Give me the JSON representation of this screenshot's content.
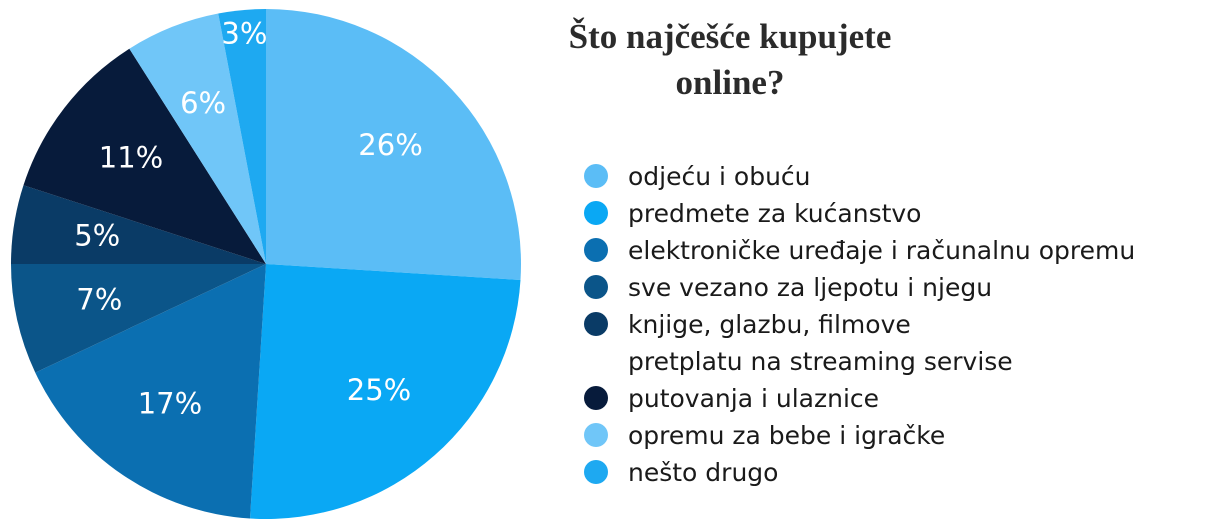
{
  "chart_data": {
    "type": "pie",
    "title": "Što najčešće kupujete online?",
    "categories": [
      "odjeću i obuću",
      "predmete za kućanstvo",
      "elektroničke uređaje i računalnu opremu",
      "sve vezano za ljepotu i njegu",
      "knjige, glazbu, filmove\npretplatu na streaming servise",
      "putovanja i ulaznice",
      "opremu za bebe i igračke",
      "nešto drugo"
    ],
    "values": [
      26,
      25,
      17,
      7,
      5,
      11,
      6,
      3
    ],
    "value_labels": [
      "26%",
      "25%",
      "17%",
      "7%",
      "5%",
      "11%",
      "6%",
      "3%"
    ],
    "colors": [
      "#5bbdf6",
      "#0aa8f4",
      "#0b6fb1",
      "#0b5589",
      "#0a3b66",
      "#071b3b",
      "#70c6f8",
      "#1ea9f1"
    ],
    "legend": "right"
  }
}
